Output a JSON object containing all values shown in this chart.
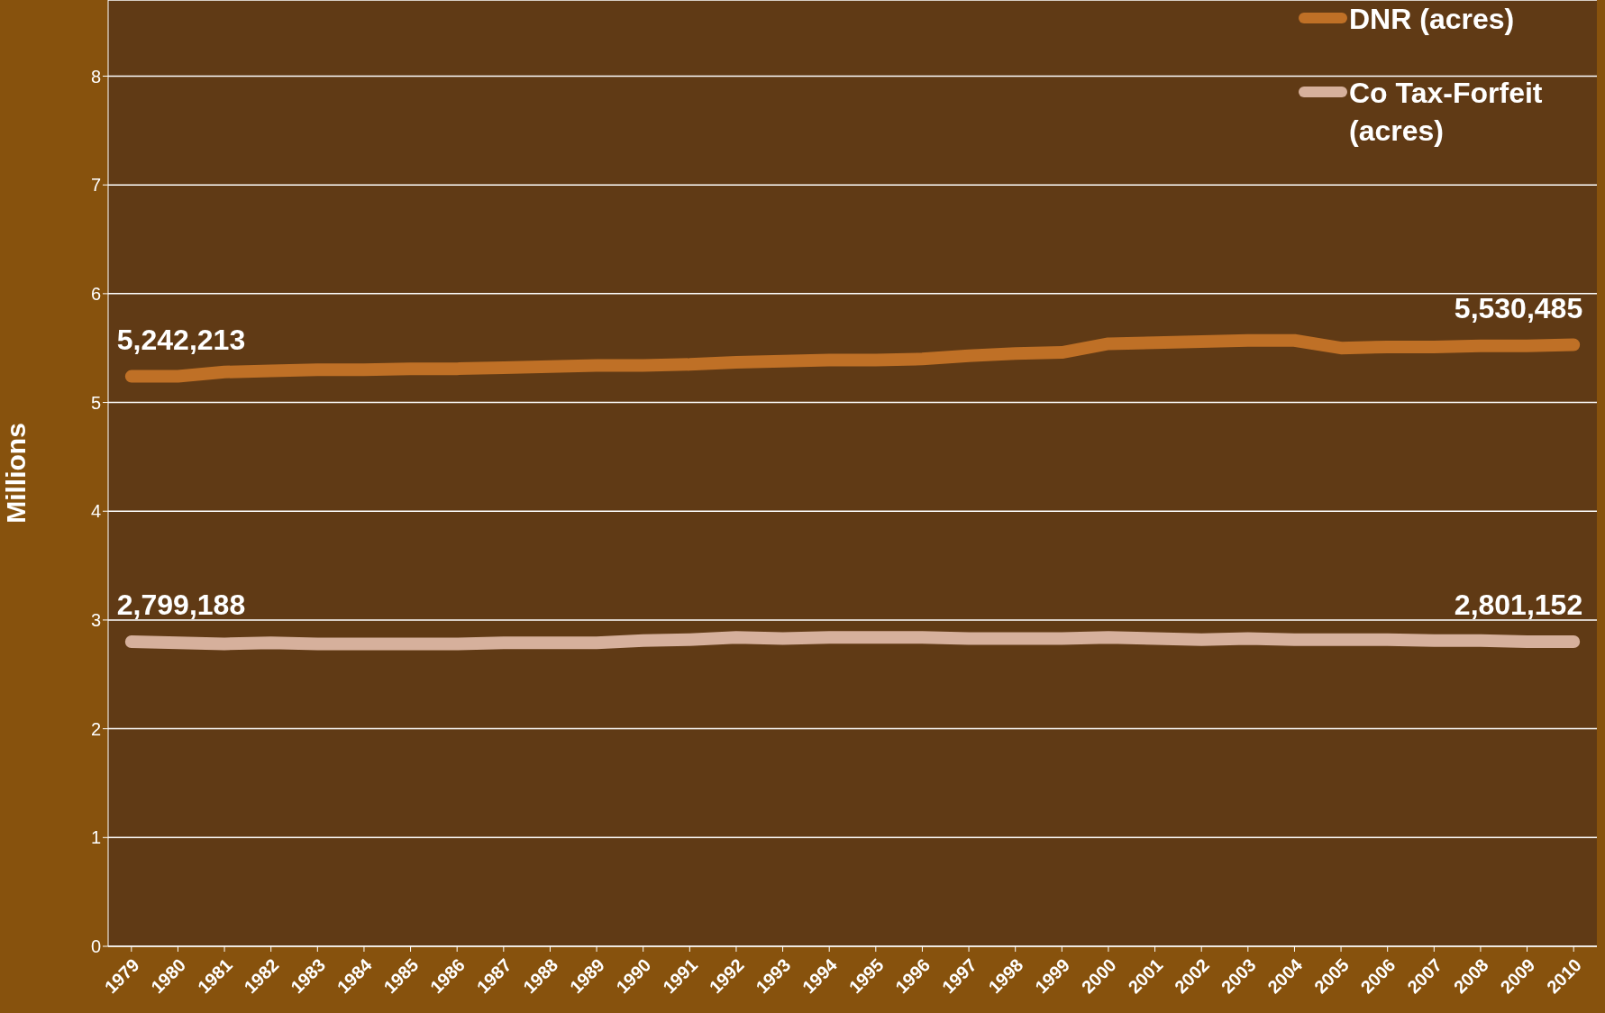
{
  "chart_data": {
    "type": "line",
    "ylabel": "Millions",
    "categories": [
      "1979",
      "1980",
      "1981",
      "1982",
      "1983",
      "1984",
      "1985",
      "1986",
      "1987",
      "1988",
      "1989",
      "1990",
      "1991",
      "1992",
      "1993",
      "1994",
      "1995",
      "1996",
      "1997",
      "1998",
      "1999",
      "2000",
      "2001",
      "2002",
      "2003",
      "2004",
      "2005",
      "2006",
      "2007",
      "2008",
      "2009",
      "2010"
    ],
    "series": [
      {
        "name": "DNR (acres)",
        "color": "#bf7026",
        "values": [
          5.24,
          5.24,
          5.28,
          5.29,
          5.3,
          5.3,
          5.31,
          5.31,
          5.32,
          5.33,
          5.34,
          5.34,
          5.35,
          5.37,
          5.38,
          5.39,
          5.39,
          5.4,
          5.43,
          5.45,
          5.46,
          5.54,
          5.55,
          5.56,
          5.57,
          5.57,
          5.5,
          5.51,
          5.51,
          5.52,
          5.52,
          5.53
        ]
      },
      {
        "name": "Co Tax-Forfeit (acres)",
        "color": "#d6b09c",
        "values": [
          2.8,
          2.79,
          2.78,
          2.79,
          2.78,
          2.78,
          2.78,
          2.78,
          2.79,
          2.79,
          2.79,
          2.81,
          2.82,
          2.84,
          2.83,
          2.84,
          2.84,
          2.84,
          2.83,
          2.83,
          2.83,
          2.84,
          2.83,
          2.82,
          2.83,
          2.82,
          2.82,
          2.82,
          2.81,
          2.81,
          2.8,
          2.8
        ]
      }
    ],
    "annotations": [
      {
        "text": "5,242,213",
        "x": "1979",
        "y": 5.24
      },
      {
        "text": "5,530,485",
        "x": "2010",
        "y": 5.53
      },
      {
        "text": "2,799,188",
        "x": "1979",
        "y": 2.8
      },
      {
        "text": "2,801,152",
        "x": "2010",
        "y": 2.8
      }
    ],
    "ylim": [
      0,
      8.7
    ],
    "yticks": [
      0,
      1,
      2,
      3,
      4,
      5,
      6,
      7,
      8
    ],
    "grid": "y",
    "legend": "top right",
    "marker": "none",
    "line_style": "solid"
  }
}
